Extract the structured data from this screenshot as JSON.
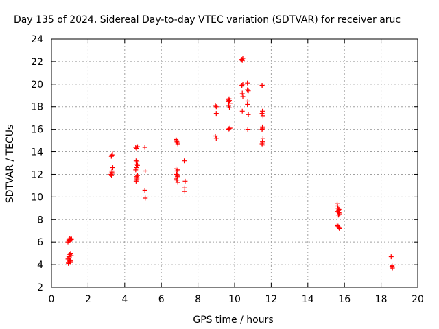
{
  "chart_data": {
    "type": "scatter",
    "title": "Day 135 of 2024, Sidereal Day-to-day VTEC variation (SDTVAR) for receiver aruc",
    "xlabel": "GPS time / hours",
    "ylabel": "SDTVAR / TECUs",
    "xlim": [
      0,
      20
    ],
    "ylim": [
      2,
      24
    ],
    "xticks": [
      0,
      2,
      4,
      6,
      8,
      10,
      12,
      14,
      16,
      18,
      20
    ],
    "yticks": [
      2,
      4,
      6,
      8,
      10,
      12,
      14,
      16,
      18,
      20,
      22,
      24
    ],
    "grid": true,
    "marker": "+",
    "colors": {
      "points": "#ff0000",
      "axis": "#000000",
      "grid": "#a0a0a0"
    },
    "series": [
      {
        "name": "SDTVAR",
        "x": [
          0.9,
          0.93,
          0.95,
          0.98,
          1.0,
          1.02,
          1.05,
          1.08,
          1.1,
          0.92,
          0.96,
          1.0,
          1.04,
          0.9,
          0.95,
          1.0,
          1.05,
          1.08,
          0.93,
          0.97,
          1.03,
          3.25,
          3.3,
          3.35,
          3.28,
          3.32,
          3.3,
          3.27,
          3.33,
          3.3,
          4.6,
          4.65,
          4.7,
          4.62,
          4.68,
          4.63,
          4.66,
          4.6,
          4.7,
          4.64,
          4.67,
          4.62,
          4.7,
          4.65,
          4.68,
          5.1,
          5.12,
          5.1,
          5.12,
          6.8,
          6.85,
          6.9,
          6.82,
          6.88,
          6.8,
          6.85,
          6.9,
          6.83,
          6.87,
          6.8,
          6.9,
          6.85,
          6.88,
          7.25,
          7.3,
          7.28,
          7.28,
          8.95,
          9.0,
          9.0,
          8.95,
          9.0,
          9.65,
          9.7,
          9.75,
          9.68,
          9.72,
          9.7,
          9.65,
          9.75,
          9.7,
          9.68,
          9.72,
          10.4,
          10.45,
          10.42,
          10.45,
          10.4,
          10.42,
          10.45,
          10.42,
          10.7,
          10.75,
          10.72,
          10.7,
          10.75,
          10.72,
          10.7,
          11.5,
          11.55,
          11.52,
          11.5,
          11.55,
          11.52,
          11.5,
          11.55,
          11.52,
          11.5,
          11.55,
          11.52,
          15.6,
          15.62,
          15.65,
          15.68,
          15.7,
          15.72,
          15.63,
          15.67,
          15.7,
          15.6,
          15.65,
          15.7,
          15.72,
          18.55,
          18.6,
          18.58,
          18.62,
          18.6
        ],
        "y": [
          6.0,
          6.1,
          6.2,
          6.15,
          6.3,
          6.25,
          6.2,
          6.3,
          6.25,
          4.2,
          4.3,
          4.4,
          4.25,
          4.5,
          4.7,
          4.9,
          5.0,
          4.8,
          4.1,
          4.6,
          4.35,
          12.0,
          12.3,
          12.6,
          11.9,
          12.1,
          13.7,
          13.6,
          13.8,
          12.2,
          14.4,
          14.3,
          14.45,
          13.2,
          13.1,
          12.9,
          12.6,
          12.4,
          12.8,
          11.8,
          11.6,
          11.4,
          11.9,
          11.5,
          11.7,
          14.4,
          12.3,
          10.6,
          9.9,
          15.1,
          14.9,
          14.7,
          15.0,
          14.8,
          12.5,
          12.3,
          12.4,
          12.0,
          11.8,
          11.6,
          11.3,
          11.5,
          11.9,
          13.2,
          11.4,
          10.8,
          10.5,
          18.1,
          18.0,
          17.4,
          15.4,
          15.2,
          18.6,
          18.5,
          18.3,
          18.1,
          17.9,
          18.7,
          16.0,
          16.1,
          16.05,
          18.45,
          18.55,
          22.2,
          22.3,
          22.1,
          20.0,
          19.9,
          19.2,
          18.9,
          17.6,
          20.1,
          19.4,
          18.5,
          18.2,
          17.3,
          16.0,
          19.5,
          19.9,
          19.85,
          17.6,
          17.4,
          17.2,
          16.2,
          16.0,
          15.2,
          14.9,
          14.7,
          14.6,
          16.1,
          9.4,
          9.2,
          9.0,
          8.8,
          8.6,
          8.5,
          8.7,
          8.4,
          8.9,
          7.5,
          7.4,
          7.3,
          7.2,
          4.7,
          3.9,
          3.8,
          3.7,
          3.85
        ]
      }
    ]
  }
}
